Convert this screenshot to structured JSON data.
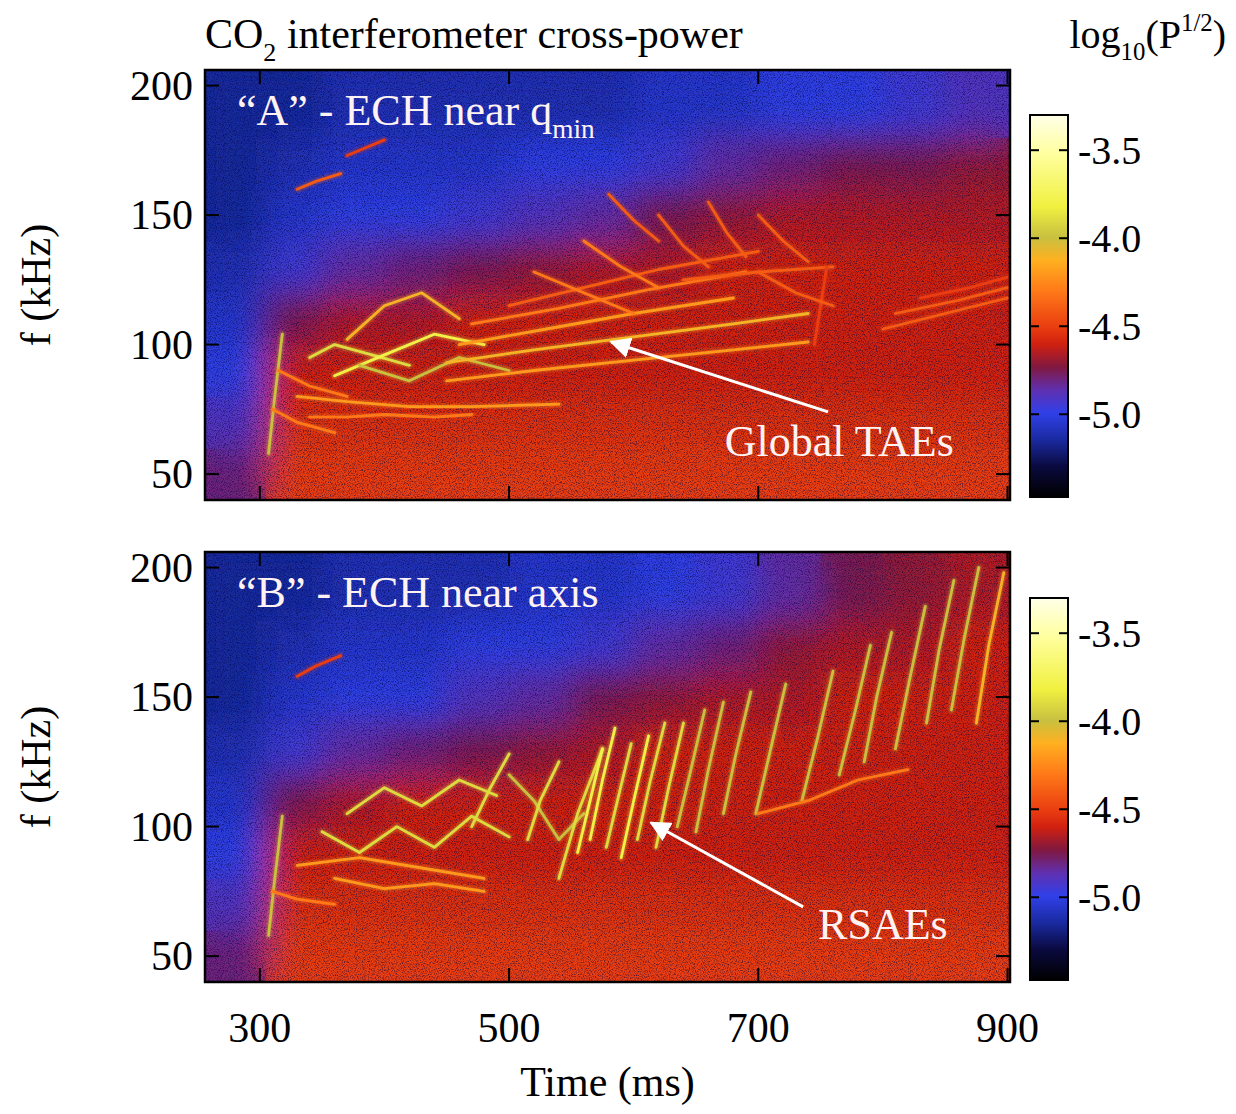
{
  "chart_data": [
    {
      "type": "heatmap",
      "title": [
        "CO",
        "2",
        " interferometer cross-power"
      ],
      "panel_label": [
        "“A” - ECH near q",
        "min"
      ],
      "y_label": "f (kHz)",
      "xlim": [
        256,
        902
      ],
      "ylim": [
        40,
        206
      ],
      "xticks": [
        300,
        500,
        700,
        900
      ],
      "yticks": [
        50,
        100,
        150,
        200
      ],
      "tick_labels": "y",
      "x_edges": [
        256,
        305,
        350,
        400,
        450,
        500,
        550,
        600,
        650,
        700,
        750,
        800,
        850,
        902
      ],
      "y_edges": [
        40,
        60,
        80,
        100,
        120,
        140,
        160,
        180,
        206
      ],
      "cells": [
        [
          -4.8,
          -4.5,
          -4.5,
          -4.5,
          -4.5,
          -4.5,
          -4.5,
          -4.5,
          -4.5,
          -4.5,
          -4.5,
          -4.5,
          -4.5
        ],
        [
          -4.9,
          -4.55,
          -4.55,
          -4.55,
          -4.55,
          -4.55,
          -4.55,
          -4.55,
          -4.55,
          -4.55,
          -4.55,
          -4.55,
          -4.55
        ],
        [
          -5.0,
          -4.6,
          -4.6,
          -4.6,
          -4.6,
          -4.6,
          -4.6,
          -4.6,
          -4.6,
          -4.6,
          -4.6,
          -4.6,
          -4.6
        ],
        [
          -5.05,
          -4.75,
          -4.65,
          -4.65,
          -4.6,
          -4.6,
          -4.6,
          -4.6,
          -4.6,
          -4.6,
          -4.6,
          -4.6,
          -4.6
        ],
        [
          -5.1,
          -4.95,
          -4.85,
          -4.8,
          -4.75,
          -4.7,
          -4.65,
          -4.65,
          -4.6,
          -4.6,
          -4.6,
          -4.6,
          -4.6
        ],
        [
          -5.15,
          -5.05,
          -5.0,
          -5.0,
          -4.95,
          -4.9,
          -4.85,
          -4.75,
          -4.7,
          -4.65,
          -4.65,
          -4.65,
          -4.65
        ],
        [
          -5.15,
          -5.1,
          -5.05,
          -5.05,
          -5.05,
          -5.0,
          -5.0,
          -4.95,
          -4.85,
          -4.8,
          -4.75,
          -4.75,
          -4.7
        ],
        [
          -5.15,
          -5.15,
          -5.1,
          -5.1,
          -5.1,
          -5.1,
          -5.1,
          -5.05,
          -5.05,
          -5.0,
          -5.0,
          -4.95,
          -4.9
        ]
      ],
      "colorbar": {
        "label": [
          "log",
          "10",
          "(P",
          "1/2",
          ")"
        ],
        "lim": [
          -5.47,
          -3.3
        ],
        "ticks": [
          -3.5,
          {
            "value": -4,
            "label": "-4.0"
          },
          -4.5,
          {
            "value": -5,
            "label": "-5.0"
          }
        ]
      },
      "modes": [
        {
          "x": [
            307,
            312,
            318
          ],
          "values": [
            58,
            80,
            104
          ],
          "level": -4.0
        },
        {
          "x": [
            310,
            330,
            360
          ],
          "values": [
            75,
            70,
            66
          ],
          "level": -4.3
        },
        {
          "x": [
            315,
            340,
            370
          ],
          "values": [
            90,
            84,
            80
          ],
          "level": -4.3
        },
        {
          "x": [
            330,
            370,
            420,
            470,
            540
          ],
          "values": [
            80,
            78,
            76,
            76,
            77
          ],
          "level": -4.2
        },
        {
          "x": [
            340,
            370,
            400,
            440,
            470
          ],
          "values": [
            72,
            72,
            73,
            72,
            73
          ],
          "level": -4.3
        },
        {
          "x": [
            340,
            360,
            390,
            420
          ],
          "values": [
            95,
            100,
            96,
            92
          ],
          "level": -3.9
        },
        {
          "x": [
            360,
            400,
            440,
            480
          ],
          "values": [
            88,
            96,
            104,
            100
          ],
          "level": -3.8
        },
        {
          "x": [
            370,
            400,
            430,
            460
          ],
          "values": [
            102,
            115,
            120,
            110
          ],
          "level": -4.1
        },
        {
          "x": [
            380,
            420,
            460,
            500
          ],
          "values": [
            92,
            86,
            95,
            90
          ],
          "level": -4.0
        },
        {
          "x": [
            330,
            345,
            365
          ],
          "values": [
            160,
            163,
            166
          ],
          "level": -4.4
        },
        {
          "x": [
            370,
            385,
            400
          ],
          "values": [
            173,
            176,
            179
          ],
          "level": -4.5
        },
        {
          "x": [
            450,
            520,
            600,
            680,
            740
          ],
          "values": [
            86,
            90,
            94,
            98,
            101
          ],
          "level": -4.2
        },
        {
          "x": [
            450,
            520,
            600,
            680,
            740
          ],
          "values": [
            93,
            98,
            103,
            108,
            112
          ],
          "level": -4.1
        },
        {
          "x": [
            460,
            530,
            600,
            680
          ],
          "values": [
            100,
            106,
            112,
            118
          ],
          "level": -4.2
        },
        {
          "x": [
            470,
            540,
            610,
            690
          ],
          "values": [
            108,
            114,
            121,
            128
          ],
          "level": -4.3
        },
        {
          "x": [
            500,
            560,
            620,
            700
          ],
          "values": [
            115,
            122,
            129,
            136
          ],
          "level": -4.4
        },
        {
          "x": [
            520,
            560,
            600
          ],
          "values": [
            128,
            120,
            112
          ],
          "level": -4.3
        },
        {
          "x": [
            560,
            590,
            620
          ],
          "values": [
            140,
            130,
            122
          ],
          "level": -4.3
        },
        {
          "x": [
            620,
            640,
            660
          ],
          "values": [
            150,
            138,
            130
          ],
          "level": -4.4
        },
        {
          "x": [
            660,
            675,
            690
          ],
          "values": [
            155,
            143,
            134
          ],
          "level": -4.4
        },
        {
          "x": [
            700,
            720,
            740
          ],
          "values": [
            150,
            140,
            132
          ],
          "level": -4.4
        },
        {
          "x": [
            640,
            700,
            760
          ],
          "values": [
            125,
            128,
            130
          ],
          "level": -4.4
        },
        {
          "x": [
            800,
            850,
            900
          ],
          "values": [
            106,
            112,
            118
          ],
          "level": -4.4
        },
        {
          "x": [
            810,
            860,
            900
          ],
          "values": [
            112,
            117,
            122
          ],
          "level": -4.4
        },
        {
          "x": [
            830,
            870,
            900
          ],
          "values": [
            118,
            122,
            126
          ],
          "level": -4.5
        },
        {
          "x": [
            745,
            750,
            755
          ],
          "values": [
            100,
            115,
            130
          ],
          "level": -4.5
        },
        {
          "x": [
            580,
            600,
            620
          ],
          "values": [
            158,
            148,
            140
          ],
          "level": -4.4
        },
        {
          "x": [
            700,
            730,
            760
          ],
          "values": [
            128,
            120,
            115
          ],
          "level": -4.4
        }
      ],
      "annotations": [
        {
          "text": "Global TAEs",
          "x": 765,
          "y": 57,
          "arrow": [
            [
              756,
              74
            ],
            [
              582,
              101
            ]
          ]
        }
      ]
    },
    {
      "type": "heatmap",
      "panel_label": [
        "“B” - ECH near axis"
      ],
      "y_label": "f (kHz)",
      "x_label": "Time (ms)",
      "xlim": [
        256,
        902
      ],
      "ylim": [
        40,
        206
      ],
      "xticks": [
        300,
        500,
        700,
        900
      ],
      "yticks": [
        50,
        100,
        150,
        200
      ],
      "x_edges": [
        256,
        305,
        350,
        400,
        450,
        500,
        550,
        600,
        650,
        700,
        750,
        800,
        850,
        902
      ],
      "y_edges": [
        40,
        60,
        80,
        100,
        120,
        140,
        160,
        180,
        206
      ],
      "cells": [
        [
          -4.8,
          -4.5,
          -4.5,
          -4.5,
          -4.5,
          -4.5,
          -4.5,
          -4.5,
          -4.5,
          -4.5,
          -4.5,
          -4.5,
          -4.5
        ],
        [
          -4.9,
          -4.55,
          -4.55,
          -4.55,
          -4.55,
          -4.55,
          -4.55,
          -4.55,
          -4.55,
          -4.55,
          -4.55,
          -4.55,
          -4.55
        ],
        [
          -5.0,
          -4.6,
          -4.6,
          -4.6,
          -4.6,
          -4.6,
          -4.6,
          -4.6,
          -4.6,
          -4.6,
          -4.6,
          -4.6,
          -4.6
        ],
        [
          -5.05,
          -4.75,
          -4.65,
          -4.6,
          -4.6,
          -4.6,
          -4.6,
          -4.6,
          -4.6,
          -4.6,
          -4.6,
          -4.6,
          -4.6
        ],
        [
          -5.1,
          -4.95,
          -4.85,
          -4.8,
          -4.75,
          -4.7,
          -4.65,
          -4.6,
          -4.6,
          -4.6,
          -4.6,
          -4.6,
          -4.6
        ],
        [
          -5.15,
          -5.05,
          -5.0,
          -5.0,
          -4.9,
          -4.85,
          -4.75,
          -4.7,
          -4.65,
          -4.65,
          -4.6,
          -4.6,
          -4.6
        ],
        [
          -5.15,
          -5.1,
          -5.05,
          -5.05,
          -5.0,
          -5.0,
          -4.95,
          -4.85,
          -4.8,
          -4.7,
          -4.65,
          -4.65,
          -4.6
        ],
        [
          -5.15,
          -5.15,
          -5.1,
          -5.1,
          -5.1,
          -5.05,
          -5.05,
          -5.0,
          -4.95,
          -4.85,
          -4.75,
          -4.7,
          -4.65
        ]
      ],
      "colorbar": {
        "lim": [
          -5.47,
          -3.3
        ],
        "ticks": [
          -3.5,
          {
            "value": -4,
            "label": "-4.0"
          },
          -4.5,
          {
            "value": -5,
            "label": "-5.0"
          }
        ]
      },
      "modes": [
        {
          "x": [
            307,
            312,
            318
          ],
          "values": [
            58,
            80,
            104
          ],
          "level": -4.0
        },
        {
          "x": [
            310,
            330,
            360
          ],
          "values": [
            75,
            72,
            70
          ],
          "level": -4.3
        },
        {
          "x": [
            330,
            380,
            430,
            480
          ],
          "values": [
            85,
            88,
            84,
            80
          ],
          "level": -4.2
        },
        {
          "x": [
            350,
            380,
            410,
            440,
            470,
            500
          ],
          "values": [
            98,
            90,
            100,
            92,
            104,
            96
          ],
          "level": -3.9
        },
        {
          "x": [
            370,
            400,
            430,
            460,
            490
          ],
          "values": [
            105,
            115,
            108,
            118,
            112
          ],
          "level": -3.9
        },
        {
          "x": [
            360,
            400,
            440,
            480
          ],
          "values": [
            80,
            76,
            78,
            75
          ],
          "level": -4.2
        },
        {
          "x": [
            470,
            485,
            500
          ],
          "values": [
            100,
            115,
            128
          ],
          "level": -3.9
        },
        {
          "x": [
            500,
            520,
            540,
            560
          ],
          "values": [
            120,
            110,
            95,
            105
          ],
          "level": -4.0
        },
        {
          "x": [
            515,
            525,
            540
          ],
          "values": [
            95,
            110,
            125
          ],
          "level": -3.9
        },
        {
          "x": [
            540,
            555,
            575
          ],
          "values": [
            80,
            105,
            130
          ],
          "level": -3.9
        },
        {
          "x": [
            555,
            565,
            575
          ],
          "values": [
            90,
            110,
            130
          ],
          "level": -3.8
        },
        {
          "x": [
            565,
            575,
            585
          ],
          "values": [
            95,
            118,
            138
          ],
          "level": -3.8
        },
        {
          "x": [
            578,
            588,
            598
          ],
          "values": [
            92,
            112,
            132
          ],
          "level": -3.9
        },
        {
          "x": [
            590,
            600,
            612
          ],
          "values": [
            88,
            110,
            135
          ],
          "level": -3.8
        },
        {
          "x": [
            603,
            613,
            625
          ],
          "values": [
            95,
            117,
            140
          ],
          "level": -3.9
        },
        {
          "x": [
            618,
            628,
            640
          ],
          "values": [
            92,
            115,
            140
          ],
          "level": -3.9
        },
        {
          "x": [
            635,
            645,
            657
          ],
          "values": [
            100,
            120,
            145
          ],
          "level": -4.0
        },
        {
          "x": [
            650,
            660,
            672
          ],
          "values": [
            98,
            122,
            148
          ],
          "level": -4.0
        },
        {
          "x": [
            672,
            682,
            694
          ],
          "values": [
            105,
            128,
            152
          ],
          "level": -4.0
        },
        {
          "x": [
            698,
            710,
            722
          ],
          "values": [
            105,
            130,
            155
          ],
          "level": -4.0
        },
        {
          "x": [
            735,
            748,
            760
          ],
          "values": [
            110,
            135,
            160
          ],
          "level": -4.0
        },
        {
          "x": [
            765,
            778,
            790
          ],
          "values": [
            120,
            145,
            170
          ],
          "level": -4.0
        },
        {
          "x": [
            785,
            795,
            807
          ],
          "values": [
            125,
            150,
            175
          ],
          "level": -4.0
        },
        {
          "x": [
            810,
            822,
            834
          ],
          "values": [
            130,
            158,
            185
          ],
          "level": -4.0
        },
        {
          "x": [
            835,
            845,
            857
          ],
          "values": [
            140,
            168,
            195
          ],
          "level": -4.0
        },
        {
          "x": [
            855,
            865,
            877
          ],
          "values": [
            145,
            172,
            200
          ],
          "level": -4.0
        },
        {
          "x": [
            875,
            885,
            897
          ],
          "values": [
            140,
            170,
            198
          ],
          "level": -4.1
        },
        {
          "x": [
            700,
            740,
            780,
            820
          ],
          "values": [
            105,
            110,
            118,
            122
          ],
          "level": -4.3
        },
        {
          "x": [
            330,
            345,
            365
          ],
          "values": [
            158,
            162,
            166
          ],
          "level": -4.5
        }
      ],
      "annotations": [
        {
          "text": "RSAEs",
          "x": 800,
          "y": 56.5,
          "arrow": [
            [
              736,
              69
            ],
            [
              614,
              101.5
            ]
          ]
        }
      ]
    }
  ]
}
